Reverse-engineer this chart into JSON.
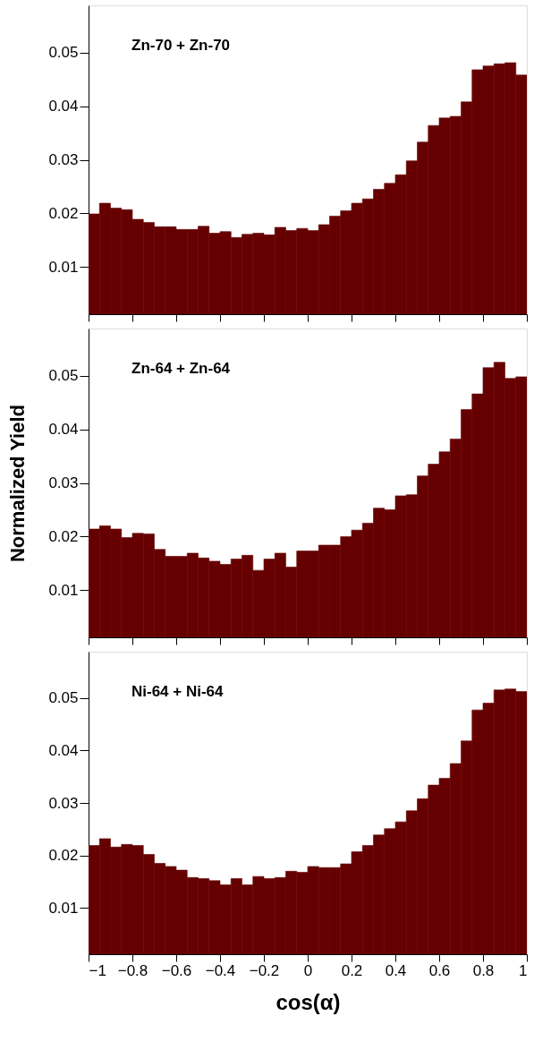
{
  "chart_data": [
    {
      "type": "histogram",
      "bins": [
        -1,
        -0.95,
        -0.9,
        -0.85,
        -0.8,
        -0.75,
        -0.7,
        -0.65,
        -0.6,
        -0.55,
        -0.5,
        -0.45,
        -0.4,
        -0.35,
        -0.3,
        -0.25,
        -0.2,
        -0.15,
        -0.1,
        -0.05,
        0,
        0.05,
        0.1,
        0.15,
        0.2,
        0.25,
        0.3,
        0.35,
        0.4,
        0.45,
        0.5,
        0.55,
        0.6,
        0.65,
        0.7,
        0.75,
        0.8,
        0.85,
        0.9,
        0.95,
        1
      ],
      "values": [
        0.0199,
        0.0219,
        0.021,
        0.0207,
        0.0189,
        0.0183,
        0.0175,
        0.0175,
        0.017,
        0.017,
        0.0176,
        0.0163,
        0.0166,
        0.0155,
        0.0161,
        0.0163,
        0.016,
        0.0174,
        0.0168,
        0.0172,
        0.0168,
        0.0179,
        0.0195,
        0.0205,
        0.0219,
        0.0227,
        0.0245,
        0.0256,
        0.0272,
        0.0298,
        0.0333,
        0.0364,
        0.0378,
        0.0381,
        0.0408,
        0.0468,
        0.0475,
        0.0479,
        0.0481,
        0.0458
      ],
      "color": "#660000",
      "xlim": [
        -1,
        1
      ],
      "xticks": [
        -1,
        -0.8,
        -0.6,
        -0.4,
        -0.2,
        0,
        0.2,
        0.4,
        0.6,
        0.8,
        1
      ],
      "ylim": [
        0.0012,
        0.0588
      ],
      "yticks": [
        0.01,
        0.02,
        0.03,
        0.04,
        0.05
      ],
      "tick_labels": "y",
      "annotations": [
        "Zn-70 + Zn-70"
      ]
    },
    {
      "type": "histogram",
      "bins": [
        -1,
        -0.95,
        -0.9,
        -0.85,
        -0.8,
        -0.75,
        -0.7,
        -0.65,
        -0.6,
        -0.55,
        -0.5,
        -0.45,
        -0.4,
        -0.35,
        -0.3,
        -0.25,
        -0.2,
        -0.15,
        -0.1,
        -0.05,
        0,
        0.05,
        0.1,
        0.15,
        0.2,
        0.25,
        0.3,
        0.35,
        0.4,
        0.45,
        0.5,
        0.55,
        0.6,
        0.65,
        0.7,
        0.75,
        0.8,
        0.85,
        0.9,
        0.95,
        1
      ],
      "values": [
        0.0214,
        0.022,
        0.0214,
        0.0198,
        0.0206,
        0.0205,
        0.0176,
        0.0163,
        0.0163,
        0.0169,
        0.016,
        0.0154,
        0.0148,
        0.0158,
        0.0165,
        0.0137,
        0.0158,
        0.0169,
        0.0143,
        0.0173,
        0.0173,
        0.0184,
        0.0184,
        0.02,
        0.0212,
        0.0225,
        0.0253,
        0.025,
        0.0276,
        0.0278,
        0.0313,
        0.0335,
        0.0358,
        0.0382,
        0.0437,
        0.0466,
        0.0515,
        0.0525,
        0.0495,
        0.0498
      ],
      "color": "#660000",
      "xlim": [
        -1,
        1
      ],
      "xticks": [
        -1,
        -0.8,
        -0.6,
        -0.4,
        -0.2,
        0,
        0.2,
        0.4,
        0.6,
        0.8,
        1
      ],
      "ylim": [
        0.0012,
        0.0588
      ],
      "yticks": [
        0.01,
        0.02,
        0.03,
        0.04,
        0.05
      ],
      "tick_labels": "y",
      "ylabel": "Normalized Yield",
      "annotations": [
        "Zn-64 + Zn-64"
      ]
    },
    {
      "type": "histogram",
      "bins": [
        -1,
        -0.95,
        -0.9,
        -0.85,
        -0.8,
        -0.75,
        -0.7,
        -0.65,
        -0.6,
        -0.55,
        -0.5,
        -0.45,
        -0.4,
        -0.35,
        -0.3,
        -0.25,
        -0.2,
        -0.15,
        -0.1,
        -0.05,
        0,
        0.05,
        0.1,
        0.15,
        0.2,
        0.25,
        0.3,
        0.35,
        0.4,
        0.45,
        0.5,
        0.55,
        0.6,
        0.65,
        0.7,
        0.75,
        0.8,
        0.85,
        0.9,
        0.95,
        1
      ],
      "values": [
        0.0219,
        0.0232,
        0.0216,
        0.0221,
        0.0219,
        0.0202,
        0.0185,
        0.0179,
        0.0172,
        0.0158,
        0.0156,
        0.0152,
        0.0144,
        0.0156,
        0.0144,
        0.016,
        0.0156,
        0.0158,
        0.017,
        0.0168,
        0.0179,
        0.0177,
        0.0177,
        0.0184,
        0.0207,
        0.0219,
        0.0239,
        0.0251,
        0.0264,
        0.0285,
        0.0308,
        0.0334,
        0.0347,
        0.0375,
        0.0418,
        0.0477,
        0.049,
        0.0515,
        0.0517,
        0.0512
      ],
      "color": "#660000",
      "xlim": [
        -1,
        1
      ],
      "xticks": [
        -1,
        -0.8,
        -0.6,
        -0.4,
        -0.2,
        0,
        0.2,
        0.4,
        0.6,
        0.8,
        1
      ],
      "ylim": [
        0.0012,
        0.0588
      ],
      "yticks": [
        0.01,
        0.02,
        0.03,
        0.04,
        0.05
      ],
      "xlabel": "cos(α)",
      "annotations": [
        "Ni-64 + Ni-64"
      ]
    }
  ]
}
